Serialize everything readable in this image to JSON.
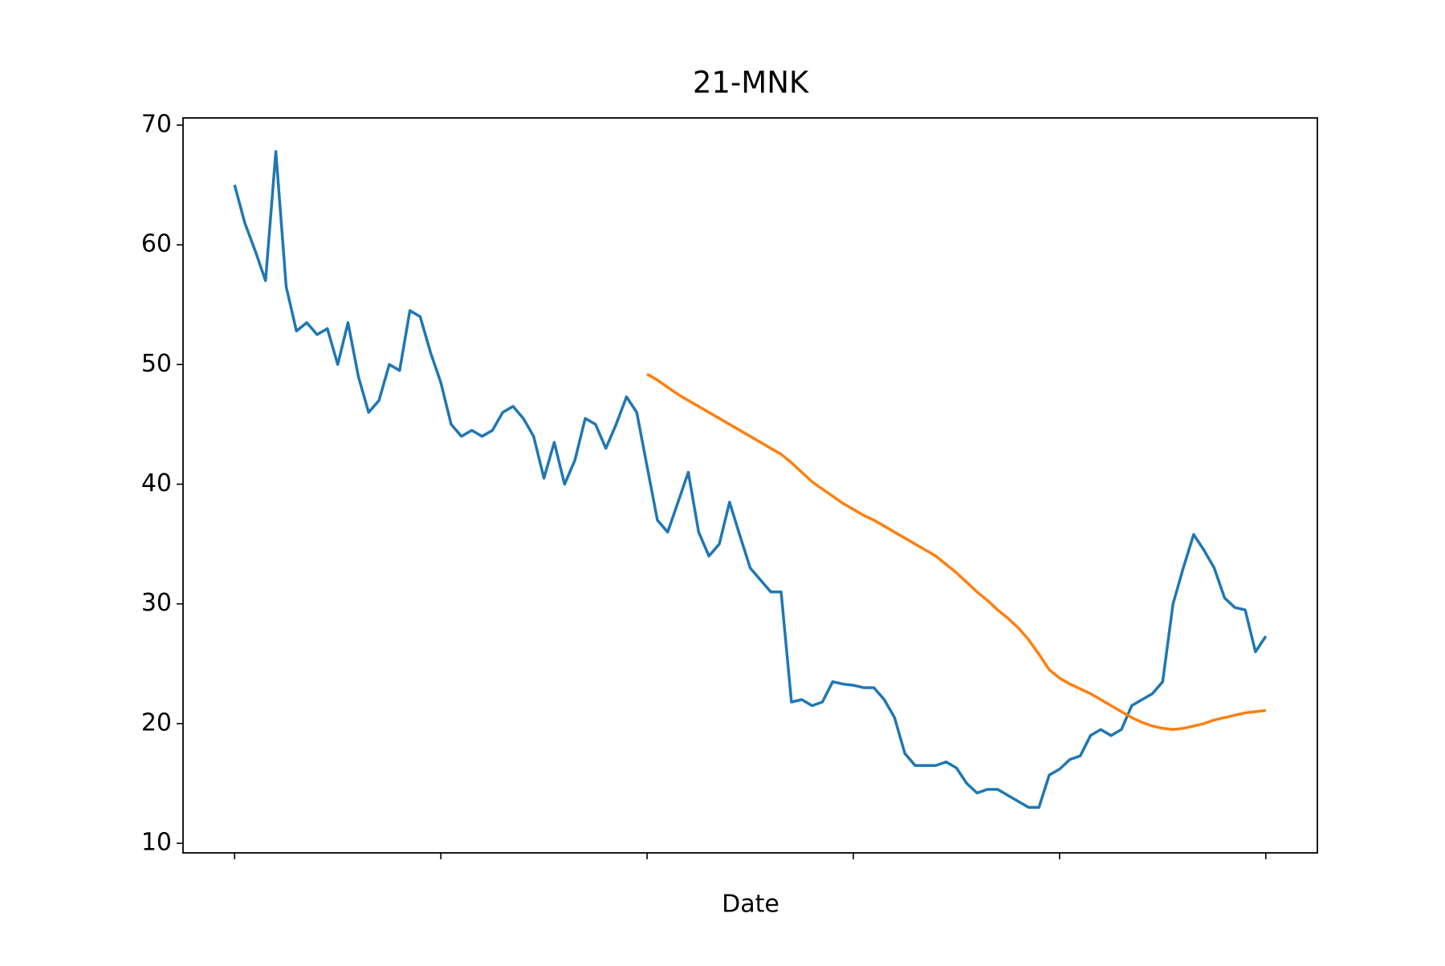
{
  "chart_data": {
    "type": "line",
    "title": "21-MNK",
    "xlabel": "Date",
    "categories": [
      null,
      null,
      null,
      null,
      null,
      null,
      null,
      null,
      null,
      null,
      null,
      null,
      null,
      null,
      null,
      null,
      null,
      null,
      null,
      null,
      null,
      null,
      null,
      null,
      null,
      null,
      null,
      null,
      null,
      null,
      null,
      null,
      null,
      null,
      null,
      null,
      null,
      null,
      null,
      null,
      null,
      null,
      null,
      null,
      null,
      null,
      null,
      null,
      null,
      null,
      null,
      null,
      null,
      null,
      null,
      null,
      null,
      null,
      null,
      null,
      null,
      null,
      null,
      null,
      null,
      null,
      null,
      null,
      null,
      null,
      null,
      null,
      null,
      null,
      null,
      null,
      null,
      null,
      null,
      null,
      null,
      null,
      null,
      null,
      null,
      null,
      null,
      null,
      null,
      null,
      null,
      null,
      null,
      null,
      null,
      null,
      null,
      null,
      null,
      null,
      null
    ],
    "xticks": [
      0,
      20,
      40,
      60,
      80,
      100
    ],
    "series": [
      {
        "color": "#1f77b4",
        "values": [
          65,
          61.8,
          59.5,
          57,
          67.8,
          56.5,
          52.8,
          53.5,
          52.5,
          53,
          50,
          53.5,
          49,
          46,
          47,
          50,
          49.5,
          54.5,
          54,
          51,
          48.5,
          45,
          44,
          44.5,
          44,
          44.5,
          46,
          46.5,
          45.5,
          44,
          40.5,
          43.5,
          40,
          42,
          45.5,
          45,
          43,
          45,
          47.3,
          46,
          41.5,
          37,
          36,
          38.5,
          41,
          36,
          34,
          35,
          38.5,
          35.7,
          33,
          32,
          31,
          31,
          21.8,
          22,
          21.5,
          21.8,
          23.5,
          23.3,
          23.2,
          23,
          23,
          22,
          20.5,
          17.5,
          16.5,
          16.5,
          16.5,
          16.8,
          16.3,
          15,
          14.2,
          14.5,
          14.5,
          14,
          13.5,
          13,
          13,
          15.7,
          16.2,
          17,
          17.3,
          19,
          19.5,
          19,
          19.5,
          21.5,
          22,
          22.5,
          23.5,
          30,
          33,
          35.8,
          34.5,
          33,
          30.5,
          29.7,
          29.5,
          26,
          27.3
        ]
      },
      {
        "color": "#ff7f0e",
        "values": [
          null,
          null,
          null,
          null,
          null,
          null,
          null,
          null,
          null,
          null,
          null,
          null,
          null,
          null,
          null,
          null,
          null,
          null,
          null,
          null,
          null,
          null,
          null,
          null,
          null,
          null,
          null,
          null,
          null,
          null,
          null,
          null,
          null,
          null,
          null,
          null,
          null,
          null,
          null,
          null,
          49.2,
          48.7,
          48.1,
          47.5,
          47.0,
          46.5,
          46.0,
          45.5,
          45.0,
          44.5,
          44.0,
          43.5,
          43.0,
          42.5,
          41.8,
          41.0,
          40.2,
          39.6,
          39.0,
          38.4,
          37.9,
          37.4,
          37.0,
          36.5,
          36.0,
          35.5,
          35.0,
          34.5,
          34.0,
          33.3,
          32.6,
          31.8,
          31.0,
          30.3,
          29.5,
          28.8,
          28.0,
          27.0,
          25.8,
          24.5,
          23.8,
          23.3,
          22.9,
          22.5,
          22.0,
          21.5,
          21.0,
          20.5,
          20.1,
          19.8,
          19.6,
          19.5,
          19.6,
          19.8,
          20.0,
          20.3,
          20.5,
          20.7,
          20.9,
          21.0,
          21.1
        ]
      }
    ],
    "ylim": [
      9.2,
      70.6
    ],
    "yticks": [
      10,
      20,
      30,
      40,
      50,
      60,
      70
    ]
  }
}
